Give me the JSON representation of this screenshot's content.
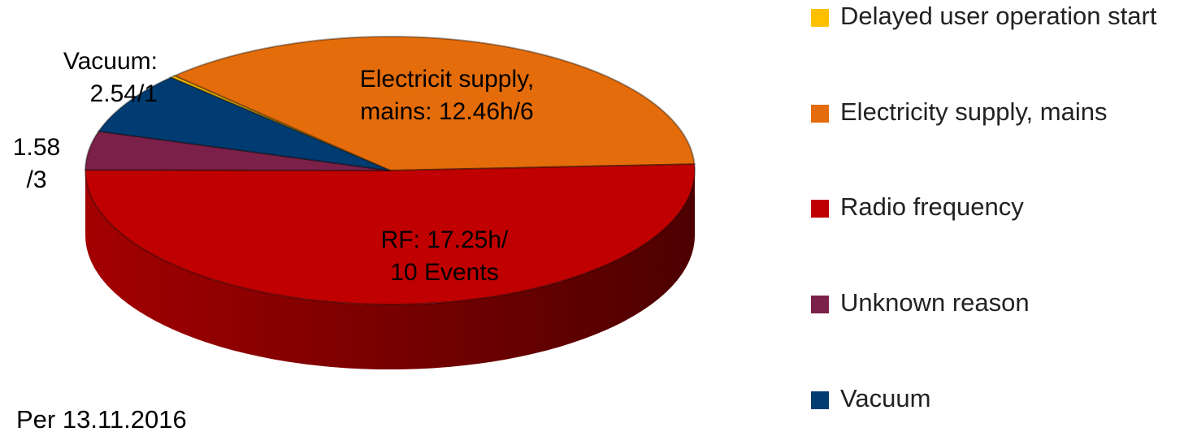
{
  "chart_data": {
    "type": "pie",
    "categories": [
      "Delayed user operation start",
      "Electricity supply, mains",
      "Radio frequency",
      "Unknown reason",
      "Vacuum"
    ],
    "values": [
      0.1,
      12.46,
      17.25,
      1.58,
      2.54
    ],
    "value_labels": [
      null,
      "Electricit supply,\nmains: 12.46h/6",
      "RF: 17.25h/\n10 Events",
      "1.58\n/3",
      "Vacuum:\n2.54/1"
    ],
    "colors": [
      "#ffc000",
      "#e46c0a",
      "#c00000",
      "#7b2049",
      "#003c71"
    ],
    "annotation": "Per 13.11.2016",
    "legend": "right"
  }
}
